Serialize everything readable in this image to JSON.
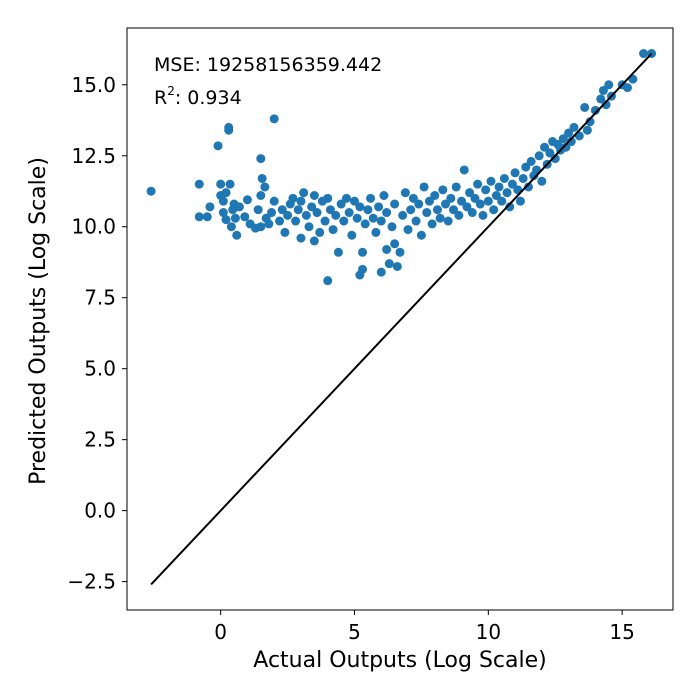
{
  "chart_data": {
    "type": "scatter",
    "xlabel": "Actual Outputs (Log Scale)",
    "ylabel": "Predicted Outputs (Log Scale)",
    "xlim": [
      -3.5,
      16.9
    ],
    "ylim": [
      -3.5,
      17.0
    ],
    "xticks": [
      0,
      5,
      10,
      15
    ],
    "yticks": [
      -2.5,
      0.0,
      2.5,
      5.0,
      7.5,
      10.0,
      12.5,
      15.0
    ],
    "xtick_labels": [
      "0",
      "5",
      "10",
      "15"
    ],
    "ytick_labels": [
      "−2.5",
      "0.0",
      "2.5",
      "5.0",
      "7.5",
      "10.0",
      "12.5",
      "15.0"
    ],
    "annotations": {
      "mse": "MSE: 19258156359.442",
      "r2_prefix": "R",
      "r2_sup": "2",
      "r2_value": ": 0.934"
    },
    "reference_line": {
      "x": [
        -2.6,
        16.1
      ],
      "y": [
        -2.6,
        16.1
      ],
      "color": "#000000"
    },
    "marker_color": "#1f77b4",
    "grid": false,
    "points": [
      [
        -2.6,
        11.25
      ],
      [
        -0.8,
        11.5
      ],
      [
        -0.8,
        10.35
      ],
      [
        -0.5,
        10.35
      ],
      [
        -0.4,
        10.7
      ],
      [
        -0.1,
        12.85
      ],
      [
        0.0,
        11.5
      ],
      [
        0.0,
        11.1
      ],
      [
        0.1,
        10.9
      ],
      [
        0.1,
        10.5
      ],
      [
        0.2,
        10.25
      ],
      [
        0.2,
        11.2
      ],
      [
        0.3,
        13.4
      ],
      [
        0.3,
        13.5
      ],
      [
        0.35,
        11.5
      ],
      [
        0.4,
        10.0
      ],
      [
        0.45,
        10.6
      ],
      [
        0.5,
        10.8
      ],
      [
        0.55,
        10.3
      ],
      [
        0.6,
        9.7
      ],
      [
        0.7,
        10.7
      ],
      [
        0.9,
        10.35
      ],
      [
        1.0,
        10.95
      ],
      [
        1.1,
        10.1
      ],
      [
        1.3,
        9.95
      ],
      [
        1.4,
        10.6
      ],
      [
        1.5,
        10.0
      ],
      [
        1.5,
        11.1
      ],
      [
        1.55,
        11.7
      ],
      [
        1.5,
        12.4
      ],
      [
        1.65,
        11.4
      ],
      [
        1.7,
        10.3
      ],
      [
        1.8,
        10.1
      ],
      [
        1.9,
        10.5
      ],
      [
        2.0,
        10.9
      ],
      [
        2.0,
        13.8
      ],
      [
        2.2,
        10.2
      ],
      [
        2.3,
        10.6
      ],
      [
        2.4,
        9.8
      ],
      [
        2.5,
        10.4
      ],
      [
        2.6,
        10.8
      ],
      [
        2.7,
        11.0
      ],
      [
        2.8,
        10.2
      ],
      [
        2.9,
        10.6
      ],
      [
        3.0,
        9.6
      ],
      [
        3.0,
        10.9
      ],
      [
        3.1,
        11.2
      ],
      [
        3.2,
        10.4
      ],
      [
        3.3,
        10.0
      ],
      [
        3.4,
        10.7
      ],
      [
        3.5,
        9.5
      ],
      [
        3.5,
        11.1
      ],
      [
        3.6,
        10.5
      ],
      [
        3.7,
        9.8
      ],
      [
        3.8,
        10.9
      ],
      [
        3.9,
        10.2
      ],
      [
        4.0,
        8.1
      ],
      [
        4.0,
        11.0
      ],
      [
        4.1,
        10.6
      ],
      [
        4.2,
        9.9
      ],
      [
        4.3,
        10.4
      ],
      [
        4.4,
        9.1
      ],
      [
        4.5,
        10.8
      ],
      [
        4.6,
        10.2
      ],
      [
        4.7,
        11.0
      ],
      [
        4.8,
        10.5
      ],
      [
        4.9,
        9.7
      ],
      [
        5.0,
        10.9
      ],
      [
        5.1,
        10.3
      ],
      [
        5.2,
        8.3
      ],
      [
        5.2,
        10.7
      ],
      [
        5.3,
        9.1
      ],
      [
        5.3,
        8.5
      ],
      [
        5.4,
        10.1
      ],
      [
        5.5,
        10.6
      ],
      [
        5.6,
        11.0
      ],
      [
        5.7,
        10.3
      ],
      [
        5.8,
        9.8
      ],
      [
        5.9,
        10.7
      ],
      [
        6.0,
        10.2
      ],
      [
        6.0,
        8.4
      ],
      [
        6.1,
        11.1
      ],
      [
        6.2,
        9.2
      ],
      [
        6.2,
        10.5
      ],
      [
        6.3,
        8.7
      ],
      [
        6.4,
        10.0
      ],
      [
        6.5,
        9.4
      ],
      [
        6.5,
        10.8
      ],
      [
        6.6,
        8.6
      ],
      [
        6.7,
        9.1
      ],
      [
        6.8,
        10.4
      ],
      [
        6.9,
        11.2
      ],
      [
        7.0,
        9.9
      ],
      [
        7.1,
        10.6
      ],
      [
        7.2,
        11.0
      ],
      [
        7.3,
        10.2
      ],
      [
        7.4,
        10.8
      ],
      [
        7.5,
        9.7
      ],
      [
        7.6,
        11.4
      ],
      [
        7.7,
        10.5
      ],
      [
        7.8,
        10.9
      ],
      [
        7.9,
        10.1
      ],
      [
        8.0,
        11.1
      ],
      [
        8.1,
        10.6
      ],
      [
        8.2,
        10.3
      ],
      [
        8.3,
        11.3
      ],
      [
        8.4,
        10.8
      ],
      [
        8.5,
        10.2
      ],
      [
        8.6,
        11.0
      ],
      [
        8.7,
        10.6
      ],
      [
        8.8,
        11.4
      ],
      [
        8.9,
        10.4
      ],
      [
        9.0,
        10.9
      ],
      [
        9.1,
        12.0
      ],
      [
        9.2,
        10.7
      ],
      [
        9.3,
        11.2
      ],
      [
        9.4,
        10.5
      ],
      [
        9.5,
        11.0
      ],
      [
        9.6,
        11.5
      ],
      [
        9.7,
        10.8
      ],
      [
        9.8,
        10.4
      ],
      [
        9.9,
        11.3
      ],
      [
        10.0,
        10.9
      ],
      [
        10.1,
        11.6
      ],
      [
        10.2,
        10.6
      ],
      [
        10.3,
        11.1
      ],
      [
        10.4,
        11.4
      ],
      [
        10.5,
        10.9
      ],
      [
        10.6,
        11.7
      ],
      [
        10.7,
        11.2
      ],
      [
        10.8,
        10.7
      ],
      [
        10.9,
        11.5
      ],
      [
        11.0,
        11.9
      ],
      [
        11.1,
        11.3
      ],
      [
        11.2,
        10.9
      ],
      [
        11.3,
        11.7
      ],
      [
        11.4,
        12.1
      ],
      [
        11.5,
        11.4
      ],
      [
        11.6,
        12.3
      ],
      [
        11.7,
        11.8
      ],
      [
        11.8,
        12.0
      ],
      [
        11.9,
        12.5
      ],
      [
        12.0,
        11.6
      ],
      [
        12.1,
        12.8
      ],
      [
        12.2,
        12.2
      ],
      [
        12.3,
        12.6
      ],
      [
        12.4,
        13.0
      ],
      [
        12.5,
        12.4
      ],
      [
        12.6,
        12.9
      ],
      [
        12.7,
        12.7
      ],
      [
        12.8,
        13.1
      ],
      [
        12.9,
        12.8
      ],
      [
        13.0,
        13.3
      ],
      [
        13.1,
        13.0
      ],
      [
        13.2,
        13.5
      ],
      [
        13.4,
        13.2
      ],
      [
        13.6,
        14.2
      ],
      [
        13.7,
        13.4
      ],
      [
        13.8,
        13.7
      ],
      [
        14.0,
        14.1
      ],
      [
        14.2,
        14.5
      ],
      [
        14.3,
        14.8
      ],
      [
        14.4,
        14.3
      ],
      [
        14.5,
        15.0
      ],
      [
        14.6,
        14.6
      ],
      [
        15.0,
        15.0
      ],
      [
        15.2,
        14.9
      ],
      [
        15.4,
        15.2
      ],
      [
        15.8,
        16.1
      ],
      [
        16.1,
        16.1
      ]
    ]
  }
}
